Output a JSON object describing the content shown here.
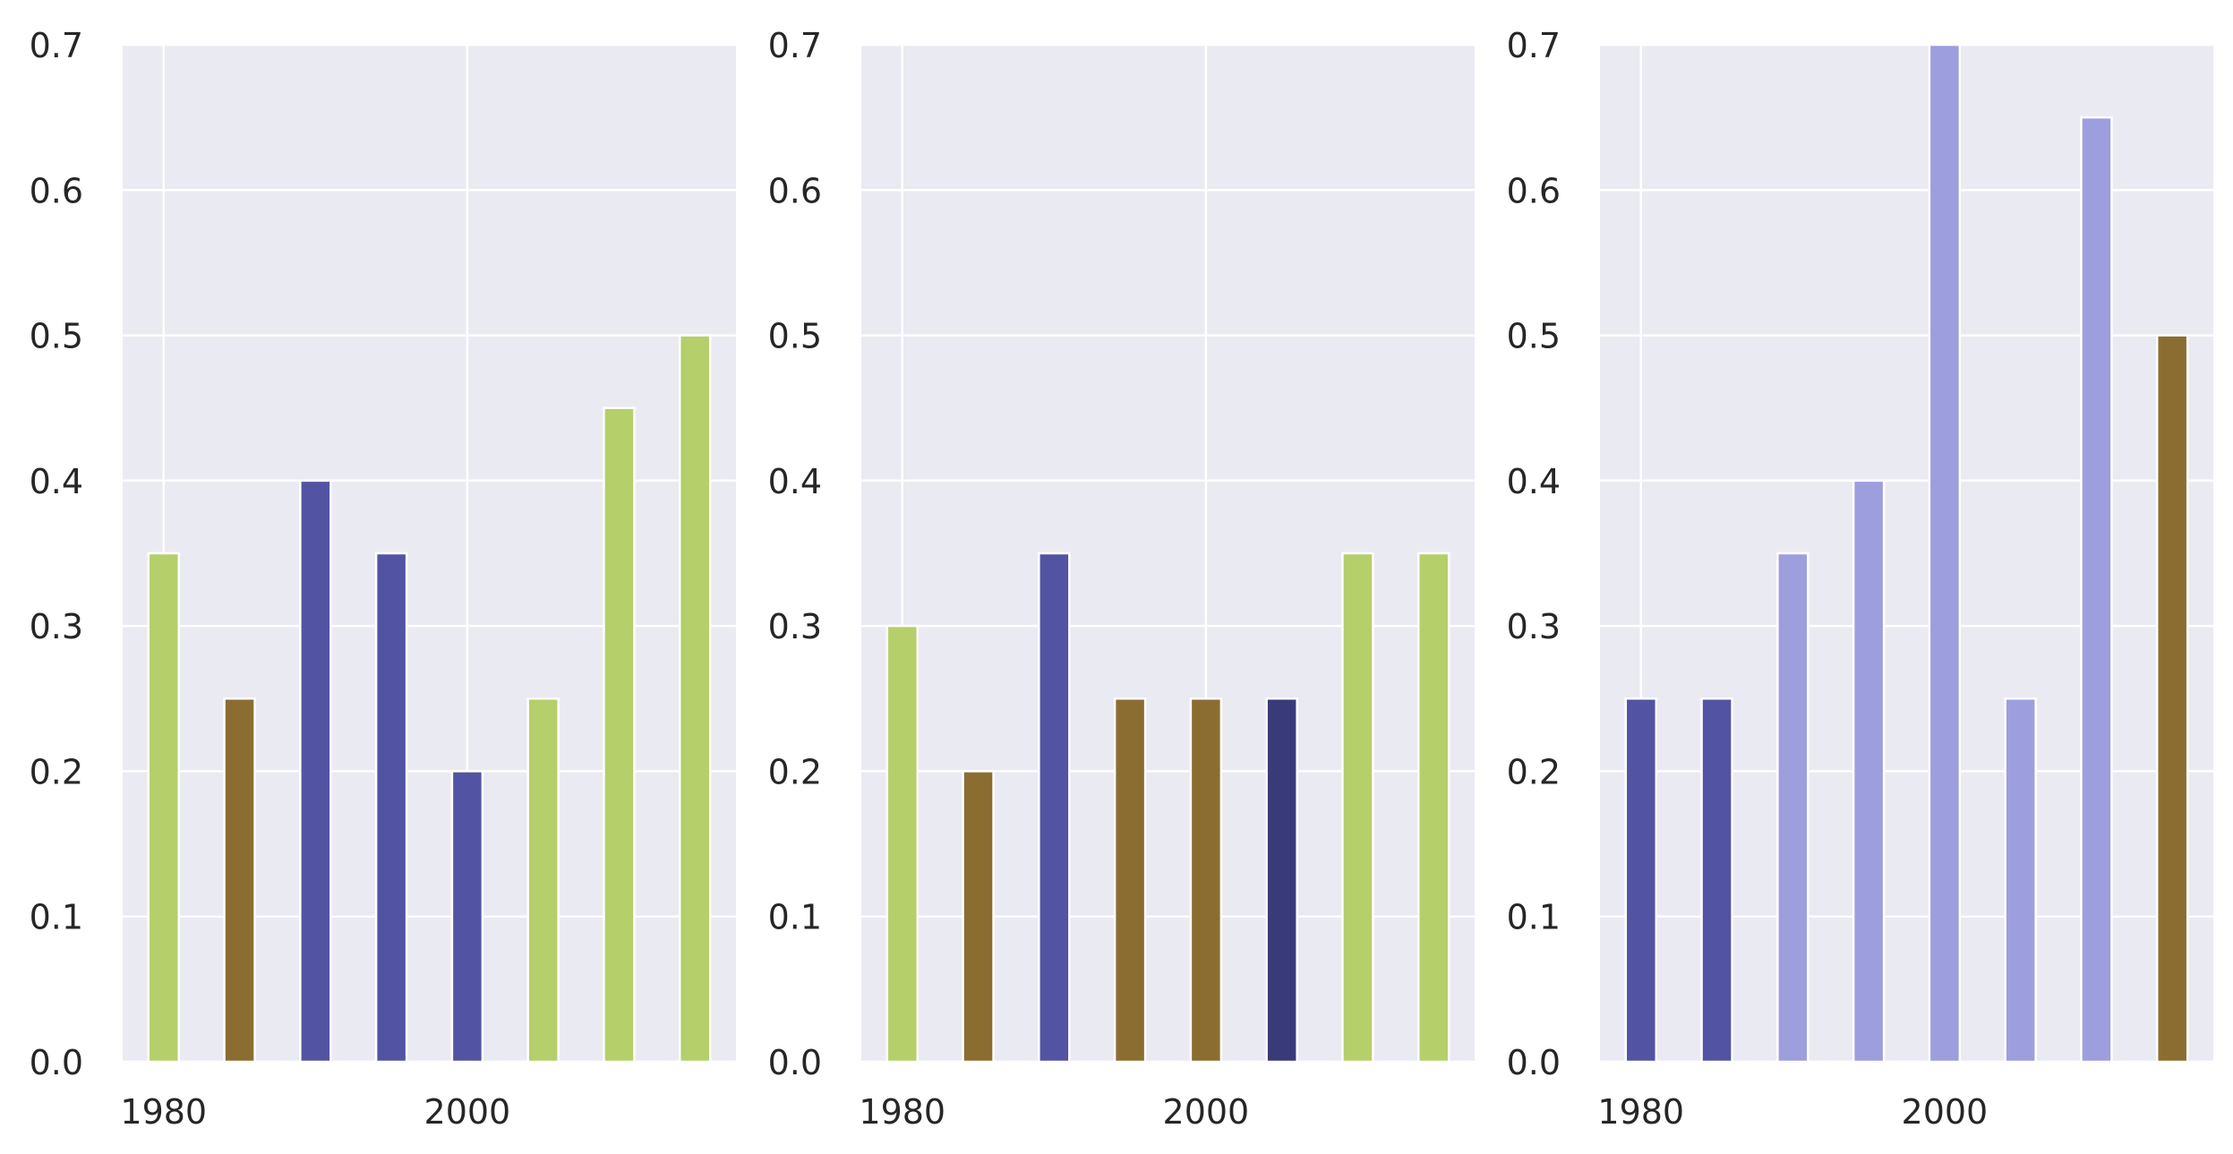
{
  "chart_data": [
    {
      "type": "bar",
      "x": [
        1980,
        1985,
        1990,
        1995,
        2000,
        2005,
        2010,
        2015
      ],
      "values": [
        0.35,
        0.25,
        0.4,
        0.35,
        0.2,
        0.25,
        0.45,
        0.5
      ],
      "bar_colors": [
        "#b5cf6b",
        "#8c6d31",
        "#5254a3",
        "#5254a3",
        "#5254a3",
        "#b5cf6b",
        "#b5cf6b",
        "#b5cf6b"
      ],
      "xticks": [
        "1980",
        "2000"
      ],
      "yticks": [
        "0.0",
        "0.1",
        "0.2",
        "0.3",
        "0.4",
        "0.5",
        "0.6",
        "0.7"
      ],
      "ylim": [
        0,
        0.7
      ],
      "xlim": [
        1977.3,
        2017.7
      ],
      "grid": true
    },
    {
      "type": "bar",
      "x": [
        1980,
        1985,
        1990,
        1995,
        2000,
        2005,
        2010,
        2015
      ],
      "values": [
        0.3,
        0.2,
        0.35,
        0.25,
        0.25,
        0.25,
        0.35,
        0.35
      ],
      "bar_colors": [
        "#b5cf6b",
        "#8c6d31",
        "#5254a3",
        "#8c6d31",
        "#8c6d31",
        "#393b79",
        "#b5cf6b",
        "#b5cf6b"
      ],
      "xticks": [
        "1980",
        "2000"
      ],
      "yticks": [
        "0.0",
        "0.1",
        "0.2",
        "0.3",
        "0.4",
        "0.5",
        "0.6",
        "0.7"
      ],
      "ylim": [
        0,
        0.7
      ],
      "xlim": [
        1977.3,
        2017.7
      ],
      "grid": true
    },
    {
      "type": "bar",
      "x": [
        1980,
        1985,
        1990,
        1995,
        2000,
        2005,
        2010,
        2015
      ],
      "values": [
        0.25,
        0.25,
        0.35,
        0.4,
        0.7,
        0.25,
        0.65,
        0.5
      ],
      "bar_colors": [
        "#5254a3",
        "#5254a3",
        "#9c9ede",
        "#9c9ede",
        "#9c9ede",
        "#9c9ede",
        "#9c9ede",
        "#8c6d31"
      ],
      "xticks": [
        "1980",
        "2000"
      ],
      "yticks": [
        "0.0",
        "0.1",
        "0.2",
        "0.3",
        "0.4",
        "0.5",
        "0.6",
        "0.7"
      ],
      "ylim": [
        0,
        0.7
      ],
      "xlim": [
        1977.3,
        2017.7
      ],
      "grid": true
    }
  ],
  "style": {
    "background": "#ffffff",
    "axes_background": "#eaeaf2",
    "grid_color": "#ffffff",
    "bar_edge_color": "#ffffff",
    "text_color": "#262626"
  }
}
